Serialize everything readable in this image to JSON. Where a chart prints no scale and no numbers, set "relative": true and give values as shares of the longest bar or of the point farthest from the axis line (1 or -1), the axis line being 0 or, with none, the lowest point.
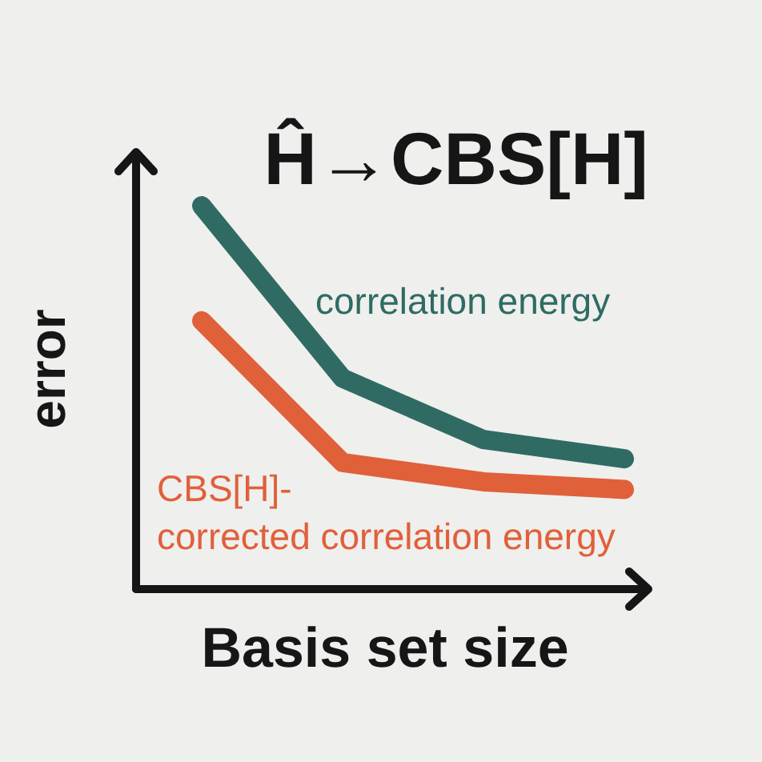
{
  "chart_data": {
    "type": "line",
    "title": "Ĥ→CBS[H]",
    "xlabel": "Basis set size",
    "ylabel": "error",
    "relative": true,
    "categories": [
      null,
      null,
      null,
      null
    ],
    "series": [
      {
        "name": "correlation energy",
        "color": "#2f6b63",
        "values": [
          1,
          0.55,
          0.39,
          0.34
        ]
      },
      {
        "name": "CBS[H]-corrected correlation energy",
        "color": "#e0603a",
        "values": [
          0.7,
          0.33,
          0.28,
          0.26
        ]
      }
    ]
  }
}
